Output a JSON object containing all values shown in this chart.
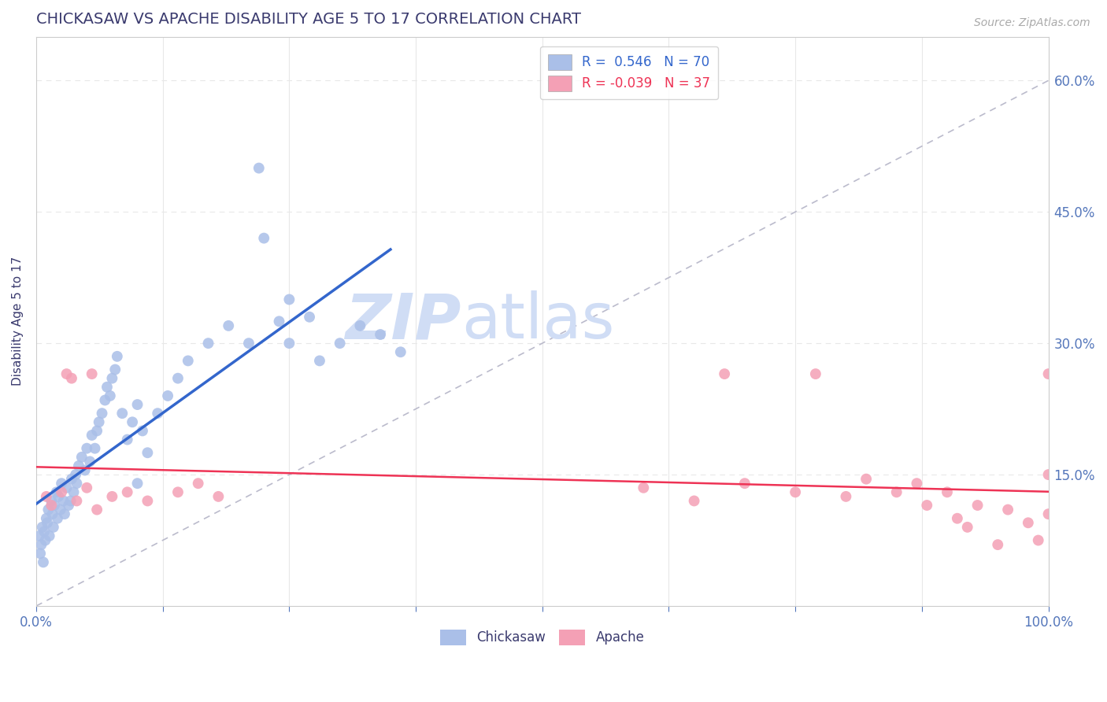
{
  "title": "CHICKASAW VS APACHE DISABILITY AGE 5 TO 17 CORRELATION CHART",
  "source_text": "Source: ZipAtlas.com",
  "ylabel": "Disability Age 5 to 17",
  "xlim": [
    0.0,
    100.0
  ],
  "ylim": [
    0.0,
    65.0
  ],
  "title_color": "#3a3a6e",
  "axis_color": "#cccccc",
  "tick_color": "#5577bb",
  "grid_color": "#e8e8e8",
  "blue_color": "#aabfe8",
  "pink_color": "#f4a0b5",
  "blue_line_color": "#3366cc",
  "pink_line_color": "#ee3355",
  "ref_line_color": "#bbbbcc",
  "watermark_color": "#d0ddf5",
  "R_blue": 0.546,
  "N_blue": 70,
  "R_pink": -0.039,
  "N_pink": 37,
  "chickasaw_x": [
    0.3,
    0.4,
    0.5,
    0.6,
    0.7,
    0.8,
    0.9,
    1.0,
    1.1,
    1.2,
    1.3,
    1.5,
    1.6,
    1.7,
    1.8,
    2.0,
    2.1,
    2.2,
    2.4,
    2.5,
    2.7,
    2.8,
    3.0,
    3.2,
    3.4,
    3.5,
    3.7,
    3.9,
    4.0,
    4.2,
    4.5,
    4.8,
    5.0,
    5.3,
    5.5,
    5.8,
    6.0,
    6.2,
    6.5,
    6.8,
    7.0,
    7.3,
    7.5,
    7.8,
    8.0,
    8.5,
    9.0,
    9.5,
    10.0,
    10.5,
    11.0,
    12.0,
    13.0,
    14.0,
    15.0,
    17.0,
    19.0,
    21.0,
    22.5,
    24.0,
    25.0,
    27.0,
    28.0,
    30.0,
    32.0,
    34.0,
    36.0,
    22.0,
    25.0,
    10.0
  ],
  "chickasaw_y": [
    8.0,
    6.0,
    7.0,
    9.0,
    5.0,
    8.5,
    7.5,
    10.0,
    9.5,
    11.0,
    8.0,
    12.0,
    10.5,
    9.0,
    11.5,
    13.0,
    10.0,
    12.5,
    11.0,
    14.0,
    12.0,
    10.5,
    13.5,
    11.5,
    12.0,
    14.5,
    13.0,
    15.0,
    14.0,
    16.0,
    17.0,
    15.5,
    18.0,
    16.5,
    19.5,
    18.0,
    20.0,
    21.0,
    22.0,
    23.5,
    25.0,
    24.0,
    26.0,
    27.0,
    28.5,
    22.0,
    19.0,
    21.0,
    23.0,
    20.0,
    17.5,
    22.0,
    24.0,
    26.0,
    28.0,
    30.0,
    32.0,
    30.0,
    42.0,
    32.5,
    35.0,
    33.0,
    28.0,
    30.0,
    32.0,
    31.0,
    29.0,
    50.0,
    30.0,
    14.0
  ],
  "apache_x": [
    1.0,
    1.5,
    2.5,
    3.0,
    4.0,
    5.0,
    6.0,
    7.5,
    9.0,
    11.0,
    14.0,
    16.0,
    18.0,
    3.5,
    5.5,
    60.0,
    65.0,
    70.0,
    75.0,
    80.0,
    82.0,
    85.0,
    87.0,
    88.0,
    90.0,
    91.0,
    92.0,
    93.0,
    95.0,
    96.0,
    98.0,
    99.0,
    100.0,
    100.0,
    100.0,
    68.0,
    77.0
  ],
  "apache_y": [
    12.5,
    11.5,
    13.0,
    26.5,
    12.0,
    13.5,
    11.0,
    12.5,
    13.0,
    12.0,
    13.0,
    14.0,
    12.5,
    26.0,
    26.5,
    13.5,
    12.0,
    14.0,
    13.0,
    12.5,
    14.5,
    13.0,
    14.0,
    11.5,
    13.0,
    10.0,
    9.0,
    11.5,
    7.0,
    11.0,
    9.5,
    7.5,
    10.5,
    26.5,
    15.0,
    26.5,
    26.5
  ]
}
